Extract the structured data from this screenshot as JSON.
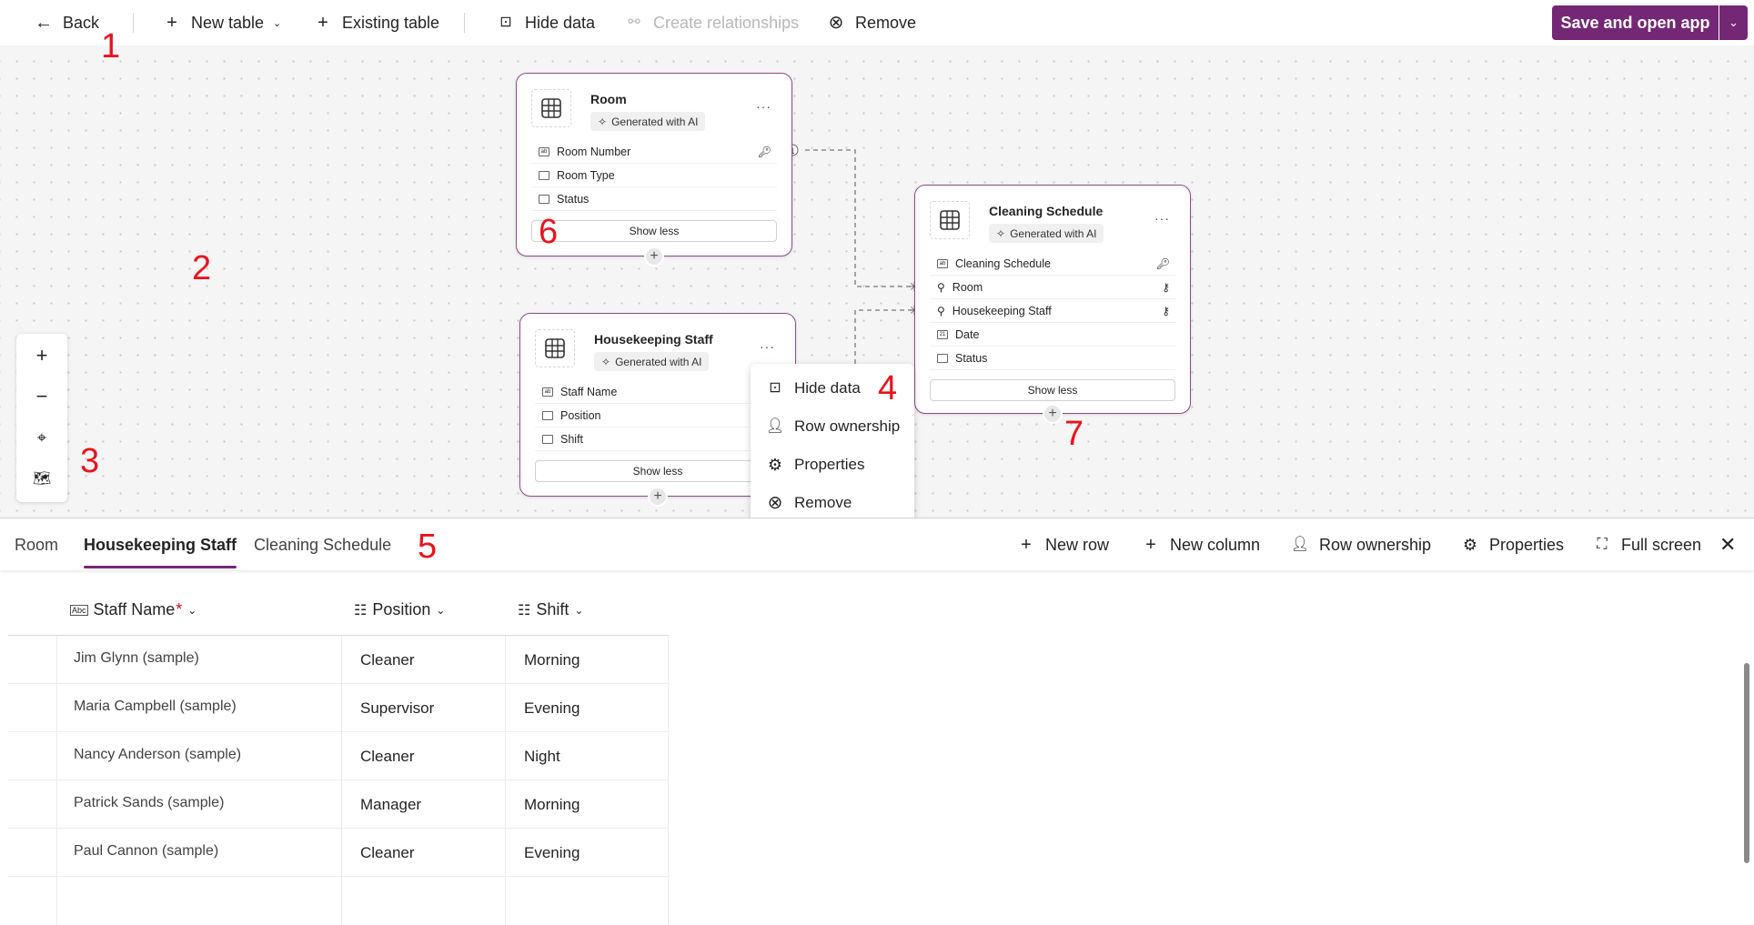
{
  "toolbar": {
    "back": "Back",
    "new_table": "New table",
    "existing_table": "Existing table",
    "hide_data": "Hide data",
    "create_relationships": "Create relationships",
    "remove": "Remove",
    "save_open": "Save and open app"
  },
  "canvas": {
    "tables": [
      {
        "title": "Room",
        "badge": "Generated with AI",
        "columns": [
          {
            "name": "Room Number",
            "type": "text",
            "primary_key": true
          },
          {
            "name": "Room Type",
            "type": "choice"
          },
          {
            "name": "Status",
            "type": "choice"
          }
        ],
        "show_less": "Show less"
      },
      {
        "title": "Cleaning Schedule",
        "badge": "Generated with AI",
        "columns": [
          {
            "name": "Cleaning Schedule",
            "type": "text",
            "primary_key": true
          },
          {
            "name": "Room",
            "type": "lookup"
          },
          {
            "name": "Housekeeping Staff",
            "type": "lookup"
          },
          {
            "name": "Date",
            "type": "date"
          },
          {
            "name": "Status",
            "type": "choice"
          }
        ],
        "show_less": "Show less"
      },
      {
        "title": "Housekeeping Staff",
        "badge": "Generated with AI",
        "columns": [
          {
            "name": "Staff Name",
            "type": "text"
          },
          {
            "name": "Position",
            "type": "choice"
          },
          {
            "name": "Shift",
            "type": "choice"
          }
        ],
        "show_less": "Show less"
      }
    ],
    "relationship_marker": "1",
    "context_menu": [
      "Hide data",
      "Row ownership",
      "Properties",
      "Remove"
    ]
  },
  "annotations": [
    "1",
    "2",
    "3",
    "4",
    "5",
    "6",
    "7"
  ],
  "panel": {
    "tabs": [
      "Room",
      "Housekeeping Staff",
      "Cleaning Schedule"
    ],
    "active_tab": "Housekeeping Staff",
    "actions": {
      "new_row": "New row",
      "new_column": "New column",
      "row_ownership": "Row ownership",
      "properties": "Properties",
      "full_screen": "Full screen"
    },
    "columns": [
      "Staff Name",
      "Position",
      "Shift"
    ],
    "required_marker": "*",
    "rows": [
      [
        "Jim Glynn (sample)",
        "Cleaner",
        "Morning"
      ],
      [
        "Maria Campbell (sample)",
        "Supervisor",
        "Evening"
      ],
      [
        "Nancy Anderson (sample)",
        "Cleaner",
        "Night"
      ],
      [
        "Patrick Sands (sample)",
        "Manager",
        "Morning"
      ],
      [
        "Paul Cannon (sample)",
        "Cleaner",
        "Evening"
      ]
    ]
  },
  "colors": {
    "accent": "#742774",
    "annotation": "#e8141c"
  }
}
